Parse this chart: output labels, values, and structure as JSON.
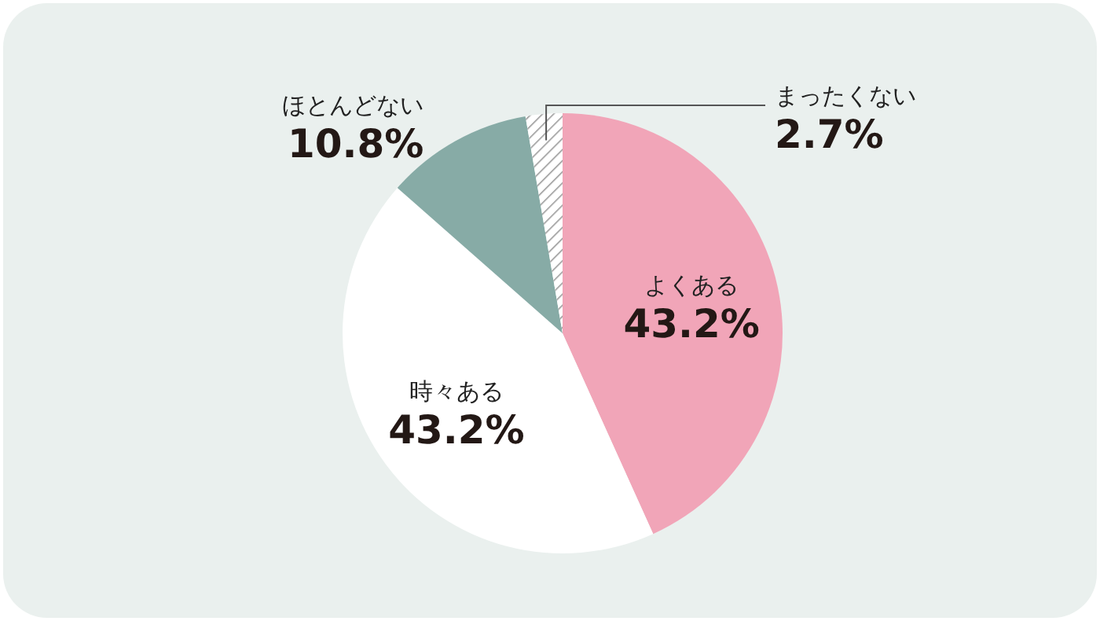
{
  "chart_data": {
    "type": "pie",
    "categories": [
      "よくある",
      "時々ある",
      "ほとんどない",
      "まったくない"
    ],
    "values": [
      43.2,
      43.2,
      10.8,
      2.7
    ],
    "colors": [
      "#f1a5b8",
      "#ffffff",
      "#87aba6",
      "#9a9a9a"
    ],
    "value_labels": [
      "43.2%",
      "43.2%",
      "10.8%",
      "2.7%"
    ]
  }
}
